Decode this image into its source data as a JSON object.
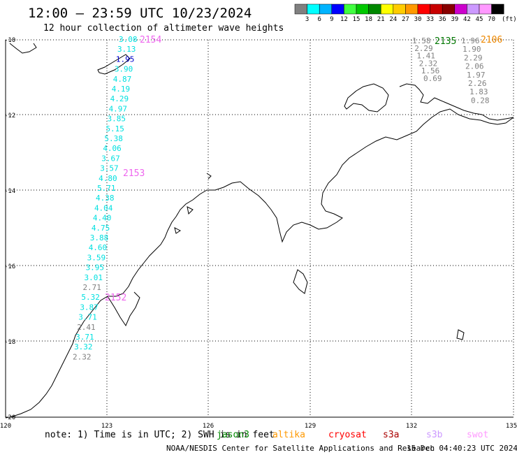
{
  "header": {
    "title": "12:00 – 23:59 UTC 10/23/2024",
    "subtitle": "12 hour collection of altimeter wave heights"
  },
  "colorbar": {
    "unit": "(ft)",
    "bins": [
      {
        "color": "#808080",
        "label": "3"
      },
      {
        "color": "#00ffff",
        "label": "6"
      },
      {
        "color": "#00b4ff",
        "label": "9"
      },
      {
        "color": "#0000ff",
        "label": "12"
      },
      {
        "color": "#40ff40",
        "label": "15"
      },
      {
        "color": "#00c800",
        "label": "18"
      },
      {
        "color": "#008800",
        "label": "21"
      },
      {
        "color": "#ffff00",
        "label": "24"
      },
      {
        "color": "#ffcc00",
        "label": "27"
      },
      {
        "color": "#ff9900",
        "label": "30"
      },
      {
        "color": "#ff0000",
        "label": "33"
      },
      {
        "color": "#c80000",
        "label": "36"
      },
      {
        "color": "#880000",
        "label": "39"
      },
      {
        "color": "#cc00cc",
        "label": "42"
      },
      {
        "color": "#cc99ff",
        "label": "45"
      },
      {
        "color": "#ff99ff",
        "label": "70"
      },
      {
        "color": "#000000",
        "label": ""
      }
    ]
  },
  "map": {
    "lon_ticks": [
      "120",
      "123",
      "126",
      "129",
      "132",
      "135"
    ],
    "lat_ticks": [
      "-10",
      "-12",
      "-14",
      "-16",
      "-18",
      "-20"
    ]
  },
  "passes": [
    {
      "id": "2154",
      "color": "#ee66ee"
    },
    {
      "id": "2153",
      "color": "#ee66ee"
    },
    {
      "id": "2152",
      "color": "#ee66ee"
    },
    {
      "id": "2135",
      "color": "#007700"
    },
    {
      "id": "2106",
      "color": "#ee8800"
    }
  ],
  "track_west": [
    {
      "v": "3.08",
      "c": "#00e0e0"
    },
    {
      "v": "3.13",
      "c": "#00e0e0"
    },
    {
      "v": "1.95",
      "c": "#0000cc"
    },
    {
      "v": "3.90",
      "c": "#00e0e0"
    },
    {
      "v": "4.87",
      "c": "#00e0e0"
    },
    {
      "v": "4.19",
      "c": "#00e0e0"
    },
    {
      "v": "4.29",
      "c": "#00e0e0"
    },
    {
      "v": "4.97",
      "c": "#00e0e0"
    },
    {
      "v": "3.85",
      "c": "#00e0e0"
    },
    {
      "v": "5.15",
      "c": "#00e0e0"
    },
    {
      "v": "5.38",
      "c": "#00e0e0"
    },
    {
      "v": "4.06",
      "c": "#00e0e0"
    },
    {
      "v": "3.67",
      "c": "#00e0e0"
    },
    {
      "v": "3.57",
      "c": "#00e0e0"
    },
    {
      "v": "4.80",
      "c": "#00e0e0"
    },
    {
      "v": "5.71",
      "c": "#00e0e0"
    },
    {
      "v": "4.38",
      "c": "#00e0e0"
    },
    {
      "v": "4.04",
      "c": "#00e0e0"
    },
    {
      "v": "4.40",
      "c": "#00e0e0"
    },
    {
      "v": "4.75",
      "c": "#00e0e0"
    },
    {
      "v": "3.88",
      "c": "#00e0e0"
    },
    {
      "v": "4.60",
      "c": "#00e0e0"
    },
    {
      "v": "3.59",
      "c": "#00e0e0"
    },
    {
      "v": "3.95",
      "c": "#00e0e0"
    },
    {
      "v": "3.01",
      "c": "#00e0e0"
    },
    {
      "v": "2.71",
      "c": "#808080"
    },
    {
      "v": "5.32",
      "c": "#00e0e0"
    },
    {
      "v": "3.87",
      "c": "#00e0e0"
    },
    {
      "v": "3.71",
      "c": "#00e0e0"
    },
    {
      "v": "2.41",
      "c": "#808080"
    },
    {
      "v": "3.71",
      "c": "#00e0e0"
    },
    {
      "v": "3.32",
      "c": "#00e0e0"
    },
    {
      "v": "2.32",
      "c": "#808080"
    }
  ],
  "track_east_a": [
    {
      "v": "1.58",
      "c": "#808080"
    },
    {
      "v": "2.29",
      "c": "#808080"
    },
    {
      "v": "1.41",
      "c": "#808080"
    },
    {
      "v": "2.32",
      "c": "#808080"
    },
    {
      "v": "1.56",
      "c": "#808080"
    },
    {
      "v": "0.69",
      "c": "#808080"
    }
  ],
  "track_east_b": [
    {
      "v": "1.96",
      "c": "#808080"
    },
    {
      "v": "1.90",
      "c": "#808080"
    },
    {
      "v": "2.29",
      "c": "#808080"
    },
    {
      "v": "2.06",
      "c": "#808080"
    },
    {
      "v": "1.97",
      "c": "#808080"
    },
    {
      "v": "2.26",
      "c": "#808080"
    },
    {
      "v": "1.83",
      "c": "#808080"
    },
    {
      "v": "0.28",
      "c": "#808080"
    }
  ],
  "note": {
    "prefix": "note: 1) Time is in UTC; 2) SWH is in feet",
    "satellites": [
      {
        "name": "jason3",
        "color": "#008800"
      },
      {
        "name": "altika",
        "color": "#ff9900"
      },
      {
        "name": "cryosat",
        "color": "#ff0000"
      },
      {
        "name": "s3a",
        "color": "#aa0000"
      },
      {
        "name": "s3b",
        "color": "#cc99ff"
      },
      {
        "name": "swot",
        "color": "#ff99ff"
      }
    ]
  },
  "footer": {
    "credit": "NOAA/NESDIS Center for Satellite Applications and Research",
    "timestamp": "15 Dec 04:40:23 UTC 2024"
  }
}
